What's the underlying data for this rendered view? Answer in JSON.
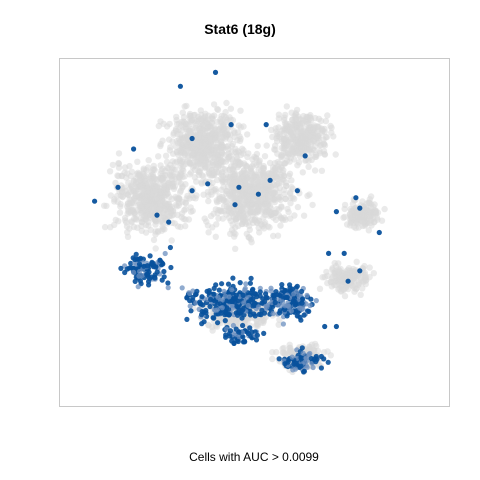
{
  "chart_data": {
    "type": "scatter",
    "title": "Stat6 (18g)",
    "xlabel": "Cells with AUC > 0.0099",
    "ylabel": "",
    "grid": false,
    "legend": "none",
    "colors": {
      "background_cells": "#d9d9d9",
      "active_cells": "#08519c",
      "active_cells_light": "#6b8fbf",
      "frame": "#c8c8c8"
    },
    "series": [
      {
        "name": "",
        "role": "background",
        "regions": [
          {
            "cx": 0.37,
            "cy": 0.24,
            "rx": 0.16,
            "ry": 0.16,
            "n": 500
          },
          {
            "cx": 0.24,
            "cy": 0.4,
            "rx": 0.18,
            "ry": 0.18,
            "n": 520
          },
          {
            "cx": 0.49,
            "cy": 0.39,
            "rx": 0.2,
            "ry": 0.2,
            "n": 650
          },
          {
            "cx": 0.62,
            "cy": 0.23,
            "rx": 0.12,
            "ry": 0.13,
            "n": 320
          },
          {
            "cx": 0.78,
            "cy": 0.45,
            "rx": 0.08,
            "ry": 0.07,
            "n": 150
          },
          {
            "cx": 0.74,
            "cy": 0.63,
            "rx": 0.1,
            "ry": 0.07,
            "n": 160
          },
          {
            "cx": 0.46,
            "cy": 0.73,
            "rx": 0.16,
            "ry": 0.08,
            "n": 260
          },
          {
            "cx": 0.62,
            "cy": 0.86,
            "rx": 0.1,
            "ry": 0.06,
            "n": 160
          }
        ]
      },
      {
        "name": "",
        "role": "active",
        "regions": [
          {
            "cx": 0.22,
            "cy": 0.61,
            "rx": 0.1,
            "ry": 0.08,
            "n": 110
          },
          {
            "cx": 0.44,
            "cy": 0.7,
            "rx": 0.18,
            "ry": 0.09,
            "n": 280
          },
          {
            "cx": 0.59,
            "cy": 0.7,
            "rx": 0.1,
            "ry": 0.09,
            "n": 160
          },
          {
            "cx": 0.62,
            "cy": 0.87,
            "rx": 0.09,
            "ry": 0.05,
            "n": 80
          },
          {
            "cx": 0.47,
            "cy": 0.8,
            "rx": 0.08,
            "ry": 0.04,
            "n": 50
          }
        ],
        "points": [
          [
            0.4,
            0.04
          ],
          [
            0.31,
            0.08
          ],
          [
            0.19,
            0.26
          ],
          [
            0.34,
            0.23
          ],
          [
            0.46,
            0.37
          ],
          [
            0.38,
            0.36
          ],
          [
            0.54,
            0.35
          ],
          [
            0.34,
            0.38
          ],
          [
            0.63,
            0.28
          ],
          [
            0.76,
            0.4
          ],
          [
            0.77,
            0.43
          ],
          [
            0.71,
            0.44
          ],
          [
            0.53,
            0.19
          ],
          [
            0.44,
            0.19
          ],
          [
            0.61,
            0.38
          ],
          [
            0.09,
            0.41
          ],
          [
            0.15,
            0.37
          ],
          [
            0.25,
            0.45
          ],
          [
            0.69,
            0.56
          ],
          [
            0.73,
            0.56
          ],
          [
            0.77,
            0.61
          ],
          [
            0.74,
            0.64
          ],
          [
            0.71,
            0.77
          ],
          [
            0.68,
            0.77
          ],
          [
            0.51,
            0.39
          ],
          [
            0.45,
            0.42
          ],
          [
            0.28,
            0.47
          ],
          [
            0.82,
            0.5
          ]
        ]
      }
    ]
  }
}
